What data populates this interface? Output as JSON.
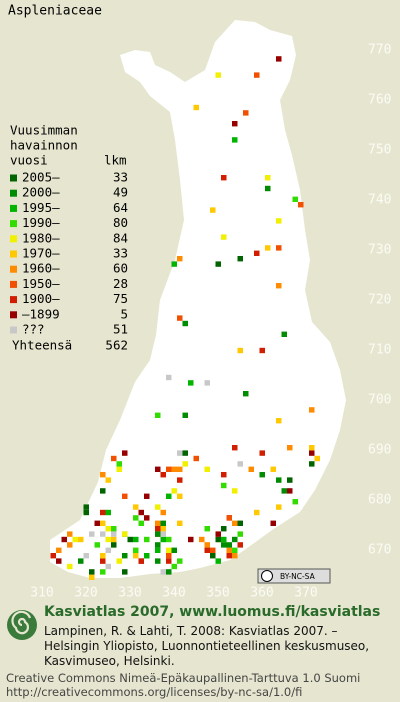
{
  "title": "Aspleniaceae",
  "legend": {
    "heading": [
      "Vuusimman",
      "havainnon",
      "vuosi"
    ],
    "count_heading": "lkm",
    "items": [
      {
        "label": "2005–",
        "count": 33,
        "color": "#006400"
      },
      {
        "label": "2000–",
        "count": 49,
        "color": "#008c00"
      },
      {
        "label": "1995–",
        "count": 64,
        "color": "#00b400"
      },
      {
        "label": "1990–",
        "count": 80,
        "color": "#32dc00"
      },
      {
        "label": "1980–",
        "count": 84,
        "color": "#f0f000"
      },
      {
        "label": "1970–",
        "count": 33,
        "color": "#ffc800"
      },
      {
        "label": "1960–",
        "count": 60,
        "color": "#ff8c00"
      },
      {
        "label": "1950–",
        "count": 28,
        "color": "#f05000"
      },
      {
        "label": "1900–",
        "count": 75,
        "color": "#d21e00"
      },
      {
        "label": "–1899",
        "count": 5,
        "color": "#960000"
      },
      {
        "label": "???",
        "count": 51,
        "color": "#c8c8c8"
      }
    ],
    "total_label": "Yhteensä",
    "total": 562
  },
  "grid": {
    "x_labels": [
      310,
      320,
      330,
      340,
      350,
      360,
      370
    ],
    "y_labels": [
      670,
      680,
      690,
      700,
      710,
      720,
      730,
      740,
      750,
      760,
      770
    ]
  },
  "license_badge": "BY-NC-SA",
  "footer": {
    "brand": "Kasviatlas 2007, www.luomus.fi/kasviatlas",
    "citation": [
      "Lampinen, R. & Lahti, T. 2008: Kasviatlas 2007. –",
      "Helsingin Yliopisto, Luonnontieteellinen keskusmuseo,",
      "Kasvimuseo, Helsinki."
    ],
    "license": [
      "Creative Commons Nimeä-Epäkaupallinen-Tarttuva 1.0 Suomi",
      "http://creativecommons.org/licenses/by-nc-sa/1.0/fi"
    ]
  }
}
